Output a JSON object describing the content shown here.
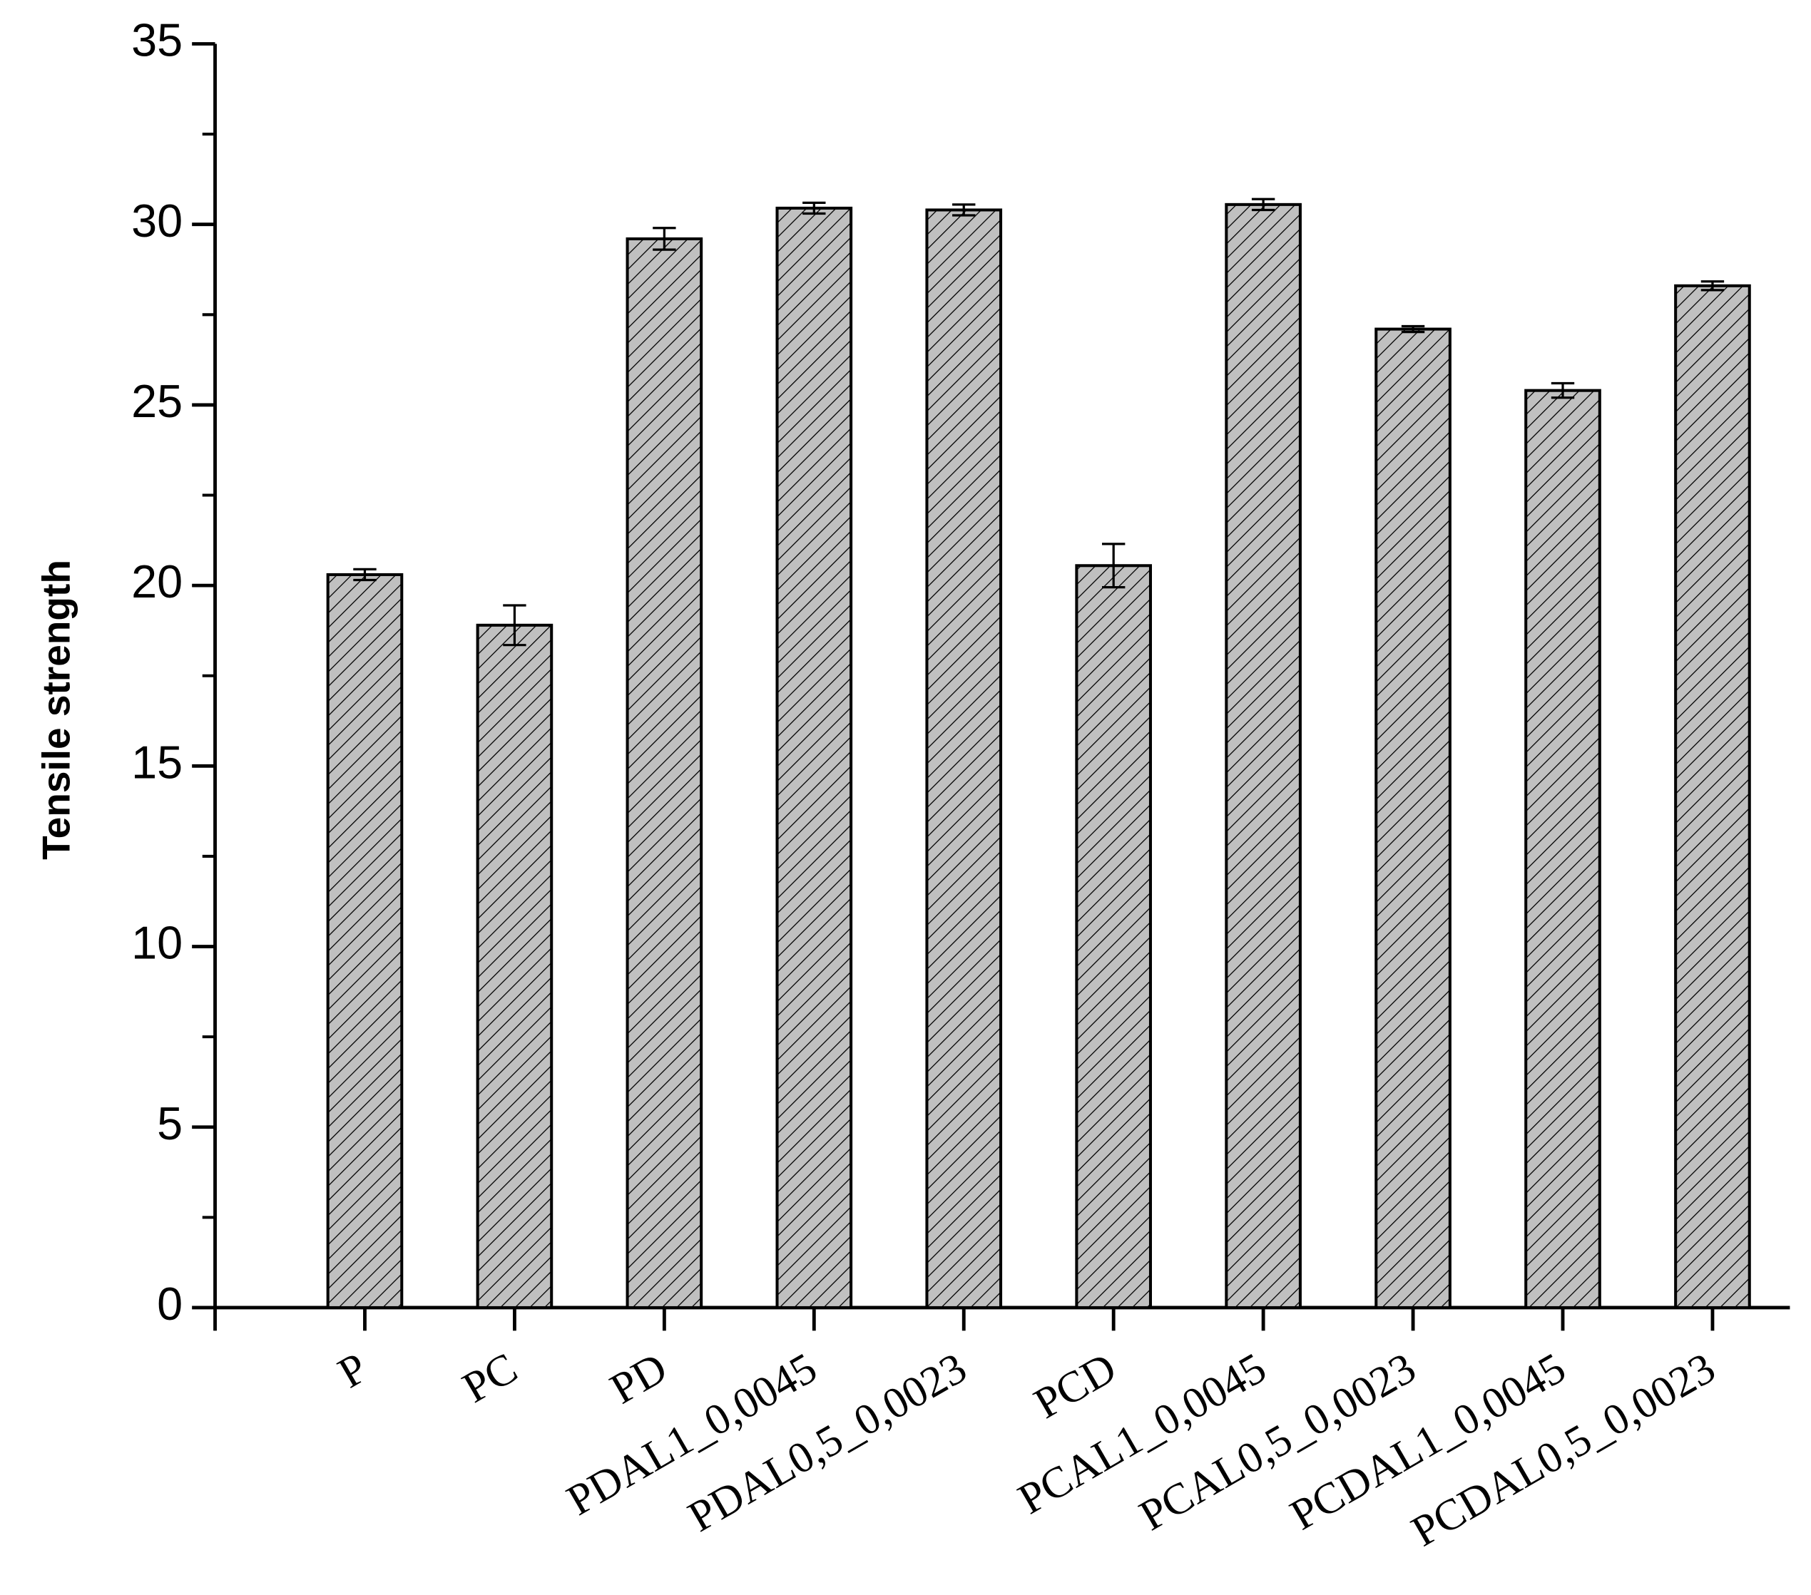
{
  "chart_data": {
    "type": "bar",
    "y_label": "Tensile strength",
    "categories": [
      "P",
      "PC",
      "PD",
      "PDAL1_0,0045",
      "PDAL0,5_0,0023",
      "PCD",
      "PCAL1_0,0045",
      "PCAL0,5_0,0023",
      "PCDAL1_0,0045",
      "PCDAL0,5_0,0023"
    ],
    "values": [
      20.3,
      18.9,
      29.6,
      30.45,
      30.4,
      20.55,
      30.55,
      27.1,
      25.4,
      28.3
    ],
    "errors": [
      0.15,
      0.55,
      0.3,
      0.15,
      0.15,
      0.6,
      0.15,
      0.08,
      0.2,
      0.12
    ],
    "color": "#c0c0c0",
    "hatch": true,
    "ylim": [
      0,
      35
    ],
    "yticks": [
      0,
      5,
      10,
      15,
      20,
      25,
      30,
      35
    ],
    "yminorticks": [
      2.5,
      7.5,
      12.5,
      17.5,
      22.5,
      27.5,
      32.5
    ]
  }
}
